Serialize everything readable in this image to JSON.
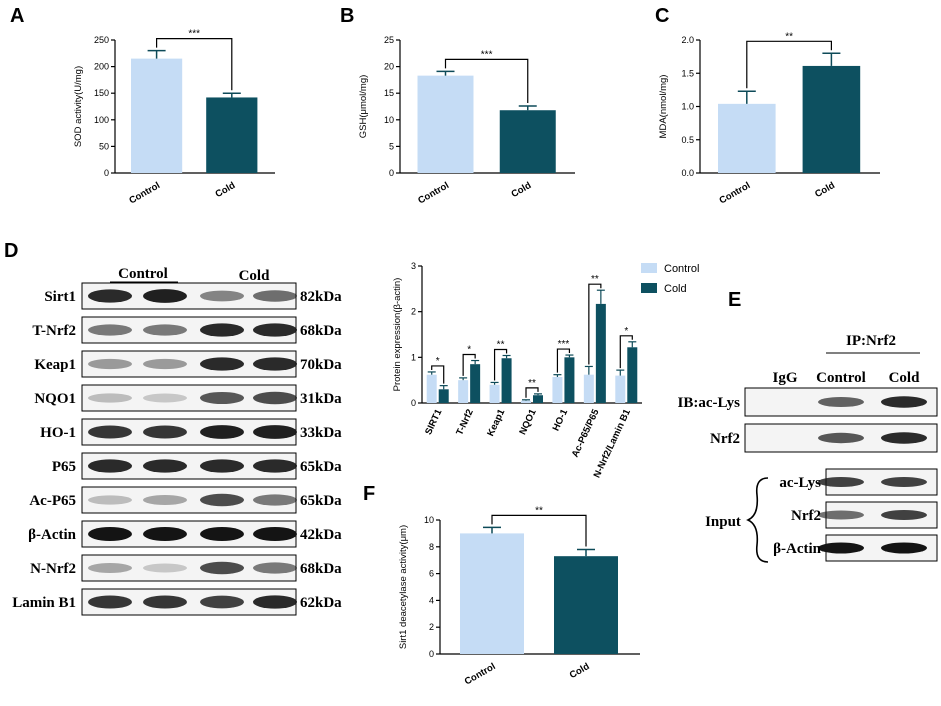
{
  "panels": {
    "A": "A",
    "B": "B",
    "C": "C",
    "D": "D",
    "E": "E",
    "F": "F"
  },
  "colors": {
    "control": "#c5dcf5",
    "cold": "#0d5060",
    "band": "#141414"
  },
  "chart_data": [
    {
      "id": "A",
      "type": "bar",
      "categories": [
        "Control",
        "Cold"
      ],
      "values": [
        215,
        142
      ],
      "errors": [
        15,
        8
      ],
      "ylabel": "SOD activity(U/mg)",
      "ylim": [
        0,
        250
      ],
      "yticks": [
        0,
        50,
        100,
        150,
        200,
        250
      ],
      "significance": "***"
    },
    {
      "id": "B",
      "type": "bar",
      "categories": [
        "Control",
        "Cold"
      ],
      "values": [
        18.3,
        11.8
      ],
      "errors": [
        0.8,
        0.8
      ],
      "ylabel": "GSH(μmol/mg)",
      "ylim": [
        0,
        25
      ],
      "yticks": [
        0,
        5,
        10,
        15,
        20,
        25
      ],
      "significance": "***"
    },
    {
      "id": "C",
      "type": "bar",
      "categories": [
        "Control",
        "Cold"
      ],
      "values": [
        1.04,
        1.61
      ],
      "errors": [
        0.19,
        0.19
      ],
      "ylabel": "MDA(nmol/mg)",
      "ylim": [
        0,
        2.0
      ],
      "yticks": [
        "0.0",
        "0.5",
        "1.0",
        "1.5",
        "2.0"
      ],
      "significance": "**"
    },
    {
      "id": "D",
      "type": "bar",
      "categories": [
        "SIRT1",
        "T-Nrf2",
        "Keap1",
        "NQO1",
        "HO-1",
        "Ac-P65/P65",
        "N-Nrf2/Lamin B1"
      ],
      "series": [
        {
          "name": "Control",
          "values": [
            0.62,
            0.5,
            0.4,
            0.05,
            0.57,
            0.62,
            0.6
          ],
          "errors": [
            0.06,
            0.05,
            0.05,
            0.02,
            0.05,
            0.18,
            0.12
          ]
        },
        {
          "name": "Cold",
          "values": [
            0.3,
            0.85,
            0.98,
            0.17,
            1.0,
            2.17,
            1.22
          ],
          "errors": [
            0.08,
            0.08,
            0.06,
            0.03,
            0.05,
            0.3,
            0.12
          ]
        }
      ],
      "significance": [
        "*",
        "*",
        "**",
        "**",
        "***",
        "**",
        "*"
      ],
      "ylabel": "Protein  expression(β-actin)",
      "ylim": [
        0,
        3
      ],
      "yticks": [
        0,
        1,
        2,
        3
      ],
      "legend": "top-right"
    },
    {
      "id": "F",
      "type": "bar",
      "categories": [
        "Control",
        "Cold"
      ],
      "values": [
        9.0,
        7.3
      ],
      "errors": [
        0.45,
        0.5
      ],
      "ylabel": "Sirt1 deacetylase activity(μm)",
      "ylim": [
        0,
        10
      ],
      "yticks": [
        0,
        2,
        4,
        6,
        8,
        10
      ],
      "significance": "**"
    }
  ],
  "blot_d": {
    "group_control": "Control",
    "group_cold": "Cold",
    "rows": [
      {
        "label": "Sirt1",
        "size": "82kDa",
        "int": [
          0.9,
          0.95,
          0.5,
          0.6
        ]
      },
      {
        "label": "T-Nrf2",
        "size": "68kDa",
        "int": [
          0.55,
          0.55,
          0.9,
          0.9
        ]
      },
      {
        "label": "Keap1",
        "size": "70kDa",
        "int": [
          0.4,
          0.4,
          0.9,
          0.9
        ]
      },
      {
        "label": "NQO1",
        "size": "31kDa",
        "int": [
          0.25,
          0.2,
          0.7,
          0.75
        ]
      },
      {
        "label": "HO-1",
        "size": "33kDa",
        "int": [
          0.85,
          0.85,
          0.95,
          0.95
        ]
      },
      {
        "label": "P65",
        "size": "65kDa",
        "int": [
          0.9,
          0.9,
          0.9,
          0.9
        ]
      },
      {
        "label": "Ac-P65",
        "size": "65kDa",
        "int": [
          0.25,
          0.35,
          0.75,
          0.55
        ]
      },
      {
        "label": "β-Actin",
        "size": "42kDa",
        "int": [
          1.0,
          1.0,
          1.0,
          1.0
        ]
      },
      {
        "label": "N-Nrf2",
        "size": "68kDa",
        "int": [
          0.35,
          0.2,
          0.75,
          0.55
        ]
      },
      {
        "label": "Lamin B1",
        "size": "62kDa",
        "int": [
          0.85,
          0.85,
          0.8,
          0.9
        ]
      }
    ]
  },
  "blot_e": {
    "ip": "IP:Nrf2",
    "lanes": [
      "IgG",
      "Control",
      "Cold"
    ],
    "ib_rows": [
      {
        "label": "IB:ac-Lys",
        "int": [
          0.0,
          0.65,
          0.9
        ]
      },
      {
        "label": "Nrf2",
        "int": [
          0.0,
          0.7,
          0.9
        ]
      }
    ],
    "input_label": "Input",
    "input_rows": [
      {
        "label": "ac-Lys",
        "int": [
          0.8,
          0.8
        ]
      },
      {
        "label": "Nrf2",
        "int": [
          0.6,
          0.8
        ]
      },
      {
        "label": "β-Actin",
        "int": [
          1.0,
          1.0
        ]
      }
    ]
  }
}
